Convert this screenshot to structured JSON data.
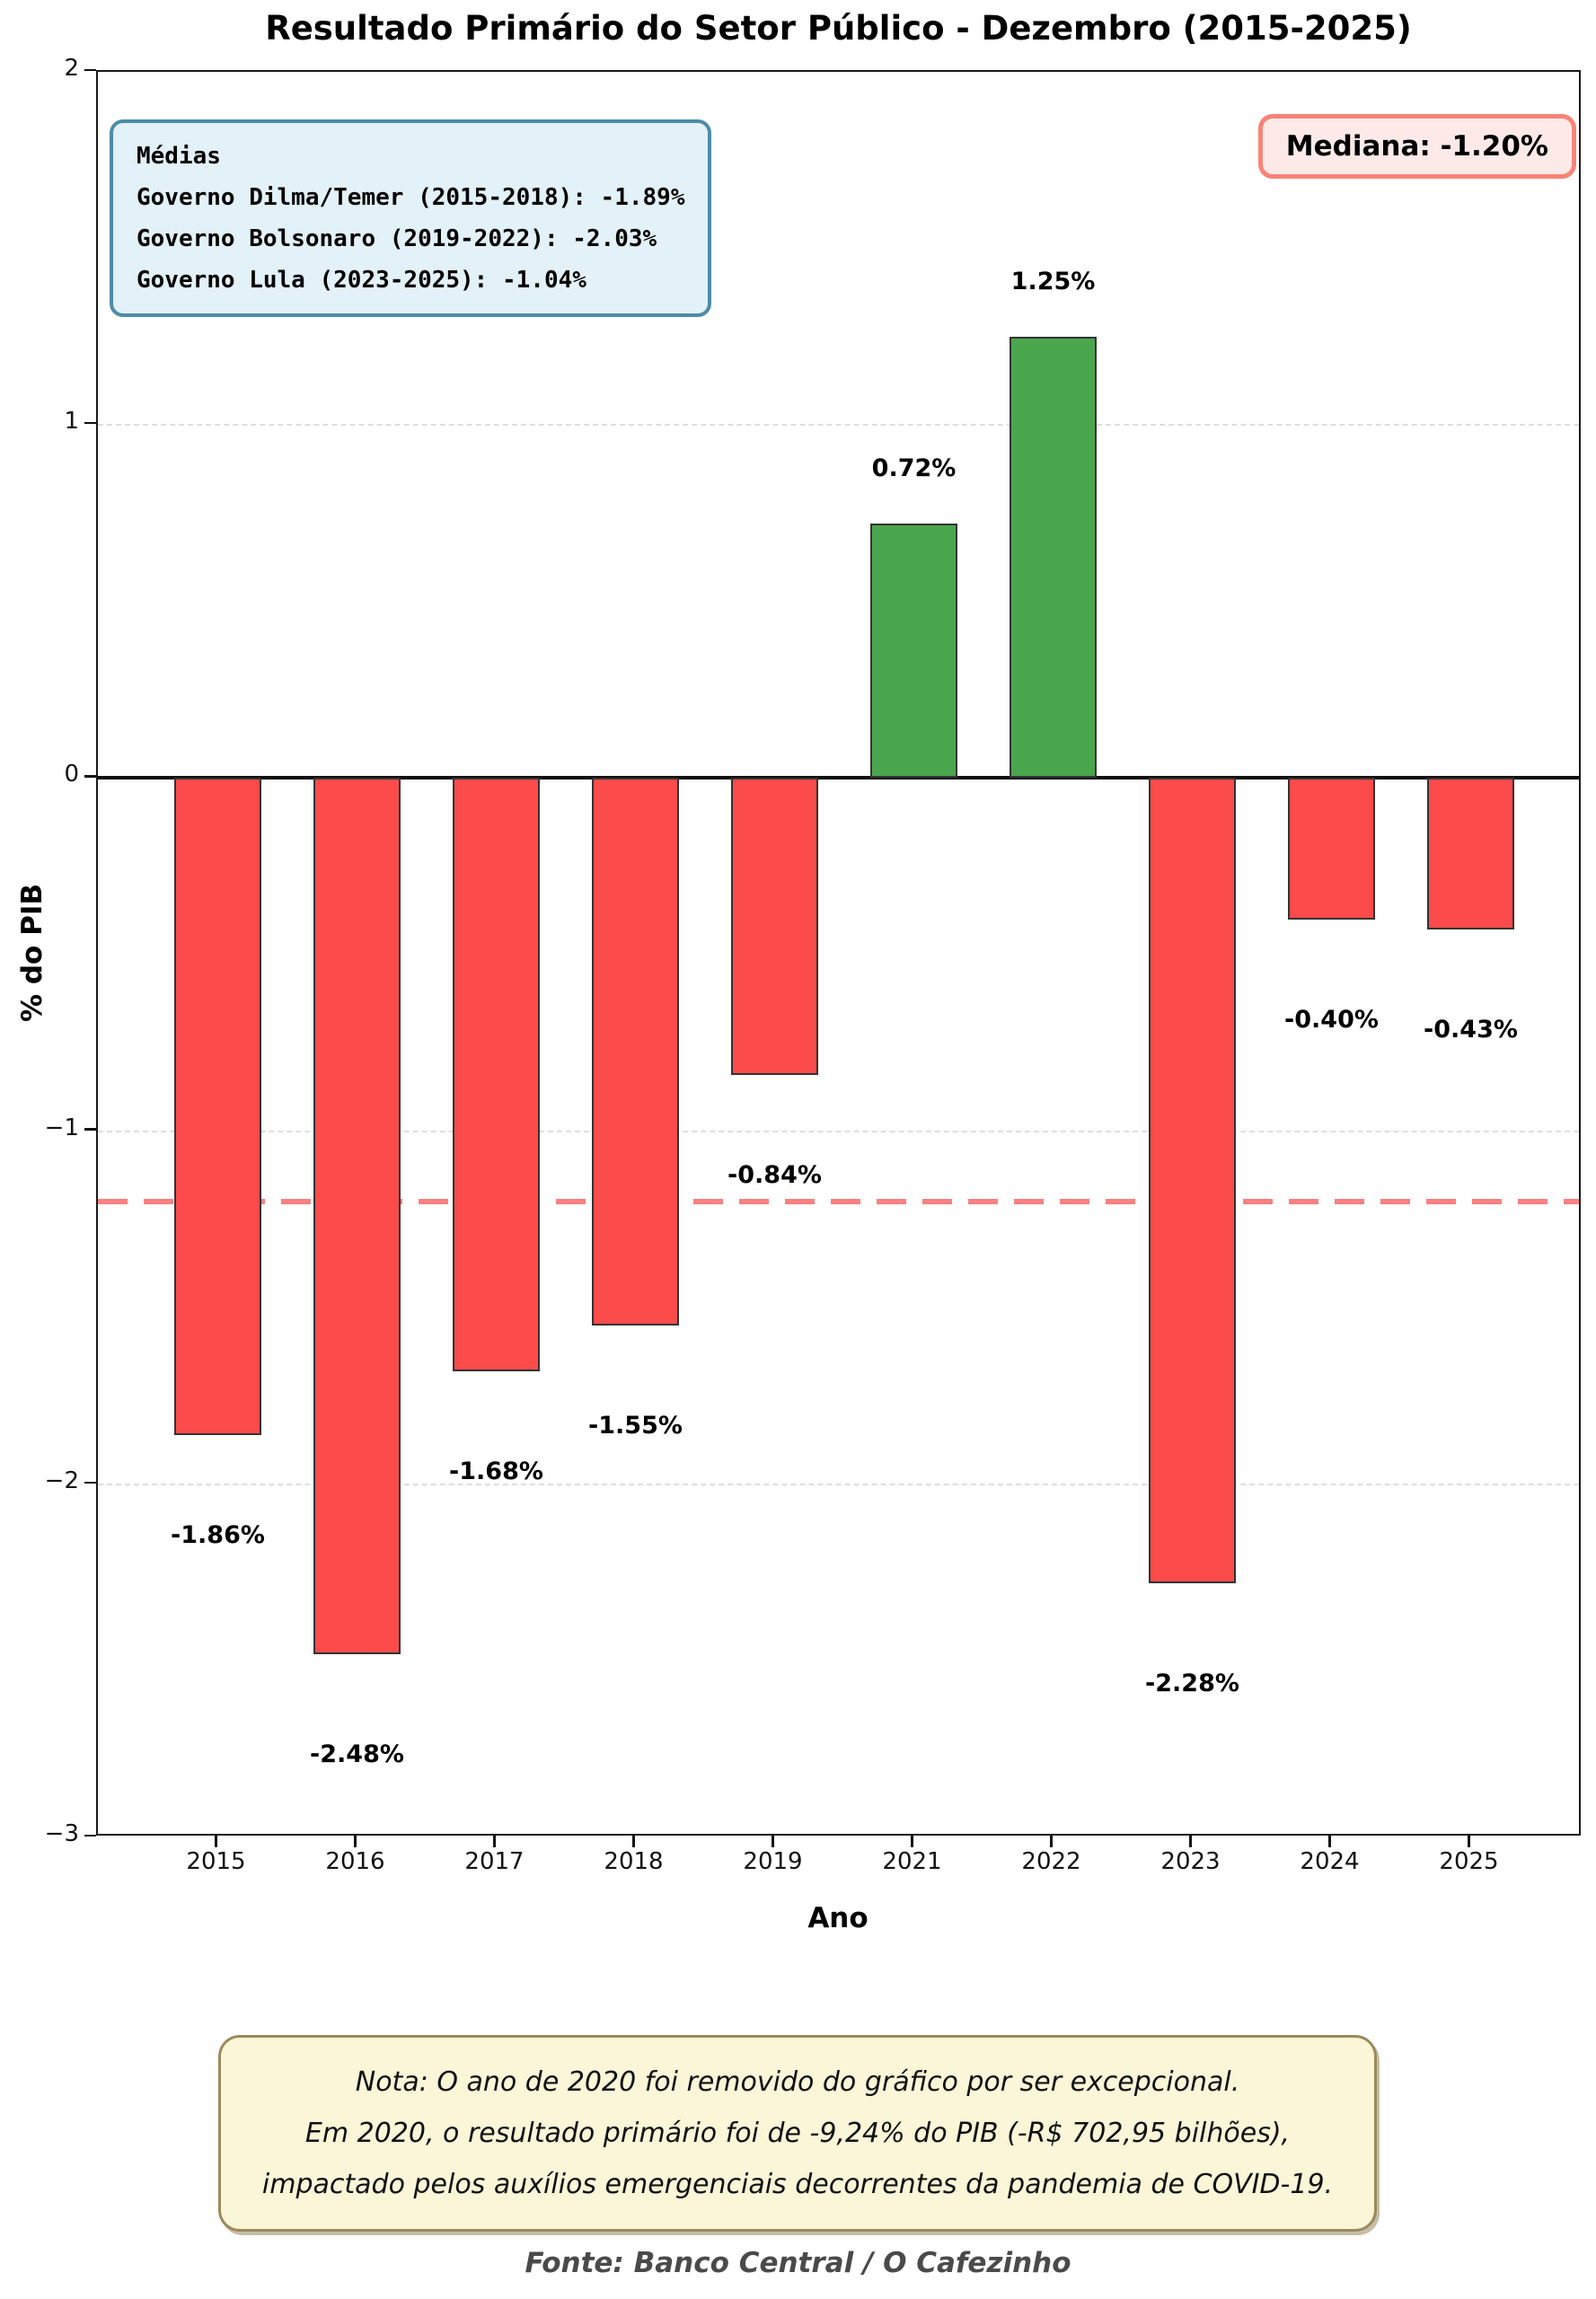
{
  "title": "Resultado Primário do Setor Público - Dezembro (2015-2025)",
  "source": "Fonte: Banco Central / O Cafezinho",
  "chart_data": {
    "type": "bar",
    "title": "Resultado Primário do Setor Público - Dezembro (2015-2025)",
    "categories": [
      "2015",
      "2016",
      "2017",
      "2018",
      "2019",
      "2021",
      "2022",
      "2023",
      "2024",
      "2025"
    ],
    "values": [
      -1.86,
      -2.48,
      -1.68,
      -1.55,
      -0.84,
      0.72,
      1.25,
      -2.28,
      -0.4,
      -0.43
    ],
    "bar_labels": [
      "-1.86%",
      "-2.48%",
      "-1.68%",
      "-1.55%",
      "-0.84%",
      "0.72%",
      "1.25%",
      "-2.28%",
      "-0.40%",
      "-0.43%"
    ],
    "xlabel": "Ano",
    "ylabel": "% do PIB",
    "ylim": [
      -3,
      2
    ],
    "yticks": [
      {
        "value": 2,
        "label": "2"
      },
      {
        "value": 1,
        "label": "1",
        "grid": true
      },
      {
        "value": 0,
        "label": "0",
        "zero_line": true
      },
      {
        "value": -1,
        "label": "−1",
        "grid": true
      },
      {
        "value": -2,
        "label": "−2",
        "grid": true
      },
      {
        "value": -3,
        "label": "−3"
      }
    ],
    "grid": "horizontal dashed",
    "median_line": {
      "value": -1.2,
      "style": "dashed"
    },
    "colors": {
      "positive_bar": "#4aa64d",
      "negative_bar": "#fb4b4b",
      "bar_edge": "#333333",
      "grid": "#dedede",
      "median_line": "#f98080",
      "zero_line": "#111111"
    }
  },
  "annotations": {
    "averages_box": {
      "title": "Médias",
      "lines": [
        "Governo Dilma/Temer (2015-2018): -1.89%",
        "Governo Bolsonaro (2019-2022): -2.03%",
        "Governo Lula (2023-2025): -1.04%"
      ],
      "background": "#e3f1f8",
      "border_color": "#4d8ca6"
    },
    "median_box": {
      "label": "Mediana: -1.20%",
      "background": "#fdeae8",
      "border_color": "#f98378"
    }
  },
  "note_box": {
    "lines": [
      "Nota: O ano de 2020 foi removido do gráfico por ser excepcional.",
      "Em 2020, o resultado primário foi de -9,24% do PIB (-R$ 702,95 bilhões),",
      "impactado pelos auxílios emergenciais decorrentes da pandemia de COVID-19."
    ],
    "background": "#fcf6d8",
    "border_color": "#9c8a5a"
  }
}
